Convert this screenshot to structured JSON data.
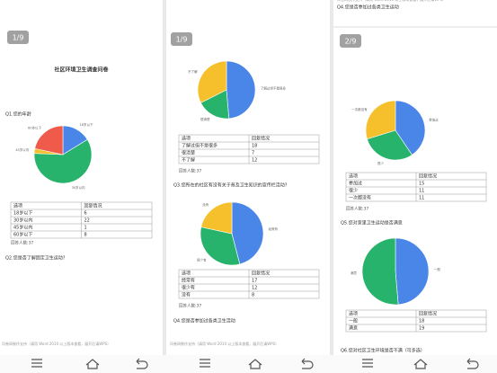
{
  "pages": [
    {
      "badge": "1/9",
      "title": "社区环境卫生调查问卷",
      "questions": [
        {
          "q": "Q1.您的年龄",
          "header": [
            "选项",
            "回复情况"
          ],
          "rows": [
            [
              "18岁以下",
              6
            ],
            [
              "30岁以内",
              22
            ],
            [
              "45岁以内",
              1
            ],
            [
              "60岁以下",
              8
            ]
          ],
          "colors": [
            "#4a86e8",
            "#27b36b",
            "#f5c02c",
            "#ef5a4a"
          ],
          "respondents": "回答人数:37"
        },
        {
          "q": "Q2.您是否了解固定卫生运动?"
        }
      ],
      "footer": "问卷网制作支持（请用 Word 2010 以上版本查看，展开后请WPS）"
    },
    {
      "badge": "1/9",
      "questions": [
        {
          "header": [
            "选项",
            "回复情况"
          ],
          "rows": [
            [
              "了解过但不是很多",
              18
            ],
            [
              "很清楚",
              7
            ],
            [
              "不了解",
              12
            ]
          ],
          "colors": [
            "#4a86e8",
            "#27b36b",
            "#f5c02c"
          ],
          "respondents": "回答人数:37"
        },
        {
          "q": "Q3.您所在的社区有没有关于普及卫生知识的宣传栏活动?",
          "header": [
            "选项",
            "回复情况"
          ],
          "rows": [
            [
              "经常有",
              17
            ],
            [
              "很少有",
              12
            ],
            [
              "没有",
              8
            ]
          ],
          "colors": [
            "#4a86e8",
            "#27b36b",
            "#f5c02c"
          ],
          "respondents": "回答人数:37"
        },
        {
          "q": "Q4.您是否参加过各类卫生活动"
        }
      ],
      "footer": "问卷网制作支持（请用 Word 2010 以上版本查看，展开后请WPS）"
    },
    {
      "top": "Q4.您是否参加过各类卫生运动",
      "badge": "2/9",
      "questions": [
        {
          "header": [
            "选项",
            "回复情况"
          ],
          "rows": [
            [
              "参加过",
              15
            ],
            [
              "很少",
              11
            ],
            [
              "一次都没有",
              11
            ]
          ],
          "colors": [
            "#4a86e8",
            "#27b36b",
            "#f5c02c"
          ],
          "respondents": "回答人数:37"
        },
        {
          "q": "Q5.您对家里卫生运动是否满意",
          "header": [
            "选项",
            "回复情况"
          ],
          "rows": [
            [
              "一般",
              18
            ],
            [
              "满意",
              19
            ]
          ],
          "colors": [
            "#4a86e8",
            "#27b36b"
          ]
        },
        {
          "q": "Q6.您对社区卫生环境是否不满（可多选）"
        }
      ],
      "footer": "问卷网制作支持（请用 Word 2010 以上版本查看，展开后请WPS）"
    }
  ]
}
